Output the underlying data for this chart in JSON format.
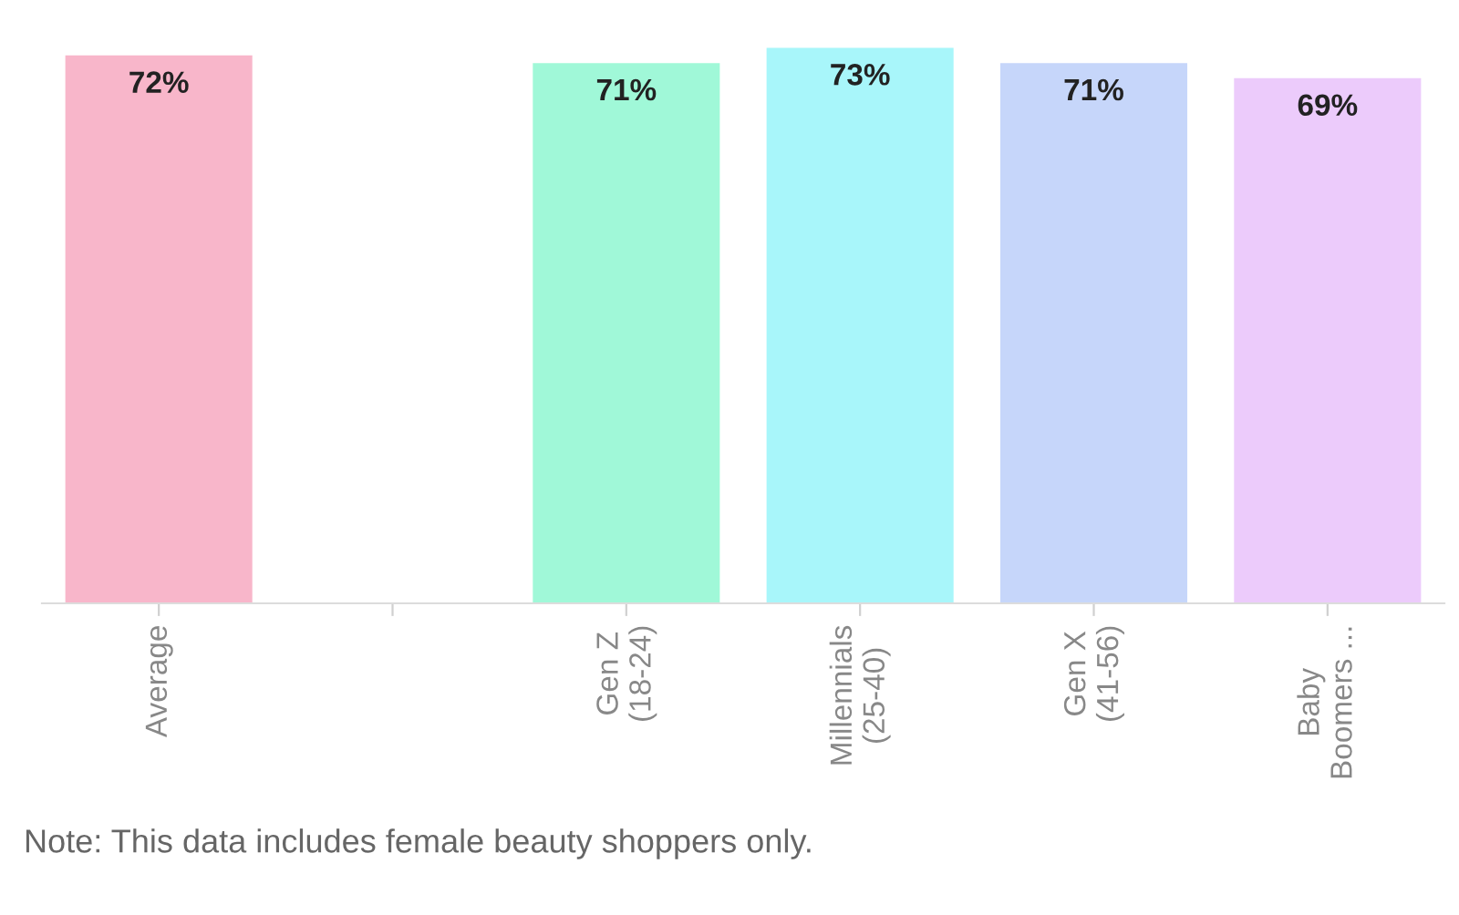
{
  "chart_data": {
    "type": "bar",
    "categories": [
      "Average",
      null,
      "Gen Z\n(18-24)",
      "Millennials\n(25-40)",
      "Gen X\n(41-56)",
      "Baby\nBoomers ..."
    ],
    "values": [
      72,
      null,
      71,
      73,
      71,
      69
    ],
    "colors": [
      "#f8b6ca",
      null,
      "#a0f8d8",
      "#a8f6fa",
      "#c6d6fa",
      "#eccbfb"
    ],
    "value_labels": [
      "72%",
      null,
      "71%",
      "73%",
      "71%",
      "69%"
    ],
    "tick_labels": "x",
    "annotations": [
      "Note: This data includes female beauty shoppers only."
    ]
  }
}
